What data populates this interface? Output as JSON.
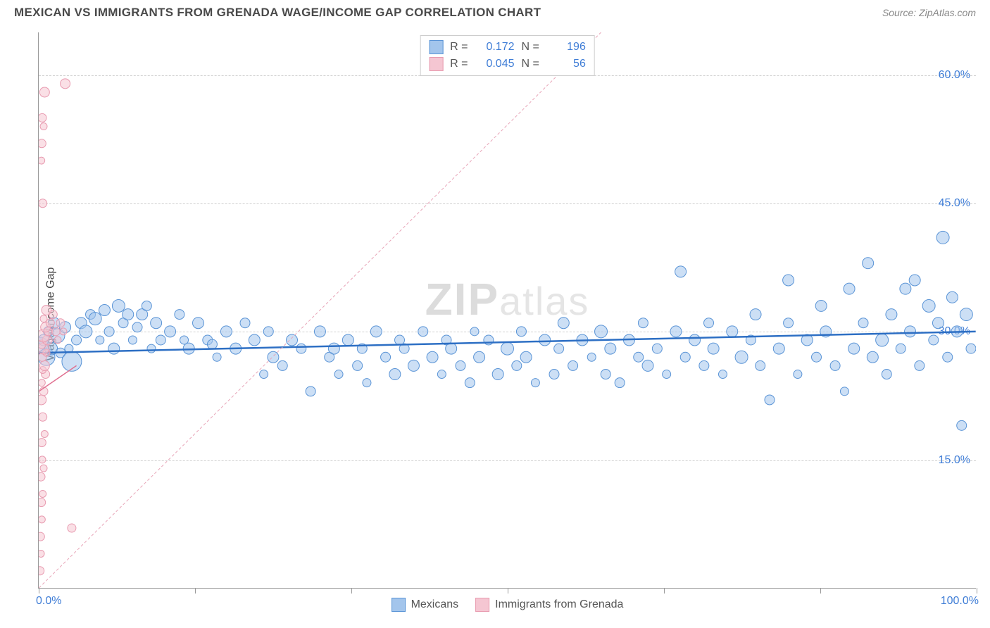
{
  "header": {
    "title": "MEXICAN VS IMMIGRANTS FROM GRENADA WAGE/INCOME GAP CORRELATION CHART",
    "source": "Source: ZipAtlas.com"
  },
  "chart": {
    "type": "scatter",
    "ylabel": "Wage/Income Gap",
    "xlim": [
      0,
      100
    ],
    "ylim": [
      0,
      65
    ],
    "ytick_values": [
      15,
      30,
      45,
      60
    ],
    "ytick_labels": [
      "15.0%",
      "30.0%",
      "45.0%",
      "60.0%"
    ],
    "xtick_values": [
      0,
      16.67,
      33.33,
      50,
      66.67,
      83.33,
      100
    ],
    "xaxis_labels": {
      "left": "0.0%",
      "right": "100.0%"
    },
    "background_color": "#ffffff",
    "grid_color": "#d0d0d0",
    "axis_color": "#999999",
    "tick_label_color": "#3f7dd6",
    "watermark": "ZIPatlas",
    "series": [
      {
        "name": "Mexicans",
        "fill_color": "#a3c5ec",
        "stroke_color": "#5a94d6",
        "fill_opacity": 0.55,
        "marker_radius_range": [
          5,
          14
        ],
        "regression": {
          "x1": 0,
          "y1": 27.5,
          "x2": 100,
          "y2": 30.0,
          "color": "#2d6fc4",
          "width": 2.5,
          "dash": "none"
        },
        "stats": {
          "R": "0.172",
          "N": "196"
        },
        "points": [
          {
            "x": 0.2,
            "y": 28.5,
            "r": 10
          },
          {
            "x": 0.5,
            "y": 29,
            "r": 8
          },
          {
            "x": 0.8,
            "y": 27,
            "r": 12
          },
          {
            "x": 1.0,
            "y": 30,
            "r": 7
          },
          {
            "x": 1.3,
            "y": 28,
            "r": 9
          },
          {
            "x": 1.6,
            "y": 31,
            "r": 8
          },
          {
            "x": 2.0,
            "y": 29.5,
            "r": 10
          },
          {
            "x": 2.3,
            "y": 27.5,
            "r": 7
          },
          {
            "x": 2.8,
            "y": 30.5,
            "r": 8
          },
          {
            "x": 3.2,
            "y": 28,
            "r": 6
          },
          {
            "x": 3.5,
            "y": 26.5,
            "r": 14
          },
          {
            "x": 4.0,
            "y": 29,
            "r": 7
          },
          {
            "x": 4.5,
            "y": 31,
            "r": 8
          },
          {
            "x": 5.0,
            "y": 30,
            "r": 9
          },
          {
            "x": 5.5,
            "y": 32,
            "r": 7
          },
          {
            "x": 6.0,
            "y": 31.5,
            "r": 9
          },
          {
            "x": 6.5,
            "y": 29,
            "r": 6
          },
          {
            "x": 7.0,
            "y": 32.5,
            "r": 8
          },
          {
            "x": 7.5,
            "y": 30,
            "r": 7
          },
          {
            "x": 8.0,
            "y": 28,
            "r": 8
          },
          {
            "x": 8.5,
            "y": 33,
            "r": 9
          },
          {
            "x": 9.0,
            "y": 31,
            "r": 7
          },
          {
            "x": 9.5,
            "y": 32,
            "r": 8
          },
          {
            "x": 10.0,
            "y": 29,
            "r": 6
          },
          {
            "x": 10.5,
            "y": 30.5,
            "r": 7
          },
          {
            "x": 11,
            "y": 32,
            "r": 8
          },
          {
            "x": 11.5,
            "y": 33,
            "r": 7
          },
          {
            "x": 12,
            "y": 28,
            "r": 6
          },
          {
            "x": 12.5,
            "y": 31,
            "r": 8
          },
          {
            "x": 13,
            "y": 29,
            "r": 7
          },
          {
            "x": 14,
            "y": 30,
            "r": 8
          },
          {
            "x": 15,
            "y": 32,
            "r": 7
          },
          {
            "x": 15.5,
            "y": 29,
            "r": 6
          },
          {
            "x": 16,
            "y": 28,
            "r": 8
          },
          {
            "x": 17,
            "y": 31,
            "r": 8
          },
          {
            "x": 18,
            "y": 29,
            "r": 7
          },
          {
            "x": 18.5,
            "y": 28.5,
            "r": 7
          },
          {
            "x": 19,
            "y": 27,
            "r": 6
          },
          {
            "x": 20,
            "y": 30,
            "r": 8
          },
          {
            "x": 21,
            "y": 28,
            "r": 8
          },
          {
            "x": 22,
            "y": 31,
            "r": 7
          },
          {
            "x": 23,
            "y": 29,
            "r": 8
          },
          {
            "x": 24,
            "y": 25,
            "r": 6
          },
          {
            "x": 24.5,
            "y": 30,
            "r": 7
          },
          {
            "x": 25,
            "y": 27,
            "r": 8
          },
          {
            "x": 26,
            "y": 26,
            "r": 7
          },
          {
            "x": 27,
            "y": 29,
            "r": 8
          },
          {
            "x": 28,
            "y": 28,
            "r": 7
          },
          {
            "x": 29,
            "y": 23,
            "r": 7
          },
          {
            "x": 30,
            "y": 30,
            "r": 8
          },
          {
            "x": 31,
            "y": 27,
            "r": 7
          },
          {
            "x": 31.5,
            "y": 28,
            "r": 8
          },
          {
            "x": 32,
            "y": 25,
            "r": 6
          },
          {
            "x": 33,
            "y": 29,
            "r": 8
          },
          {
            "x": 34,
            "y": 26,
            "r": 7
          },
          {
            "x": 34.5,
            "y": 28,
            "r": 7
          },
          {
            "x": 35,
            "y": 24,
            "r": 6
          },
          {
            "x": 36,
            "y": 30,
            "r": 8
          },
          {
            "x": 37,
            "y": 27,
            "r": 7
          },
          {
            "x": 38,
            "y": 25,
            "r": 8
          },
          {
            "x": 38.5,
            "y": 29,
            "r": 7
          },
          {
            "x": 39,
            "y": 28,
            "r": 7
          },
          {
            "x": 40,
            "y": 26,
            "r": 8
          },
          {
            "x": 41,
            "y": 30,
            "r": 7
          },
          {
            "x": 42,
            "y": 27,
            "r": 8
          },
          {
            "x": 43,
            "y": 25,
            "r": 6
          },
          {
            "x": 43.5,
            "y": 29,
            "r": 7
          },
          {
            "x": 44,
            "y": 28,
            "r": 8
          },
          {
            "x": 45,
            "y": 26,
            "r": 7
          },
          {
            "x": 46,
            "y": 24,
            "r": 7
          },
          {
            "x": 46.5,
            "y": 30,
            "r": 6
          },
          {
            "x": 47,
            "y": 27,
            "r": 8
          },
          {
            "x": 48,
            "y": 29,
            "r": 7
          },
          {
            "x": 49,
            "y": 25,
            "r": 8
          },
          {
            "x": 50,
            "y": 28,
            "r": 9
          },
          {
            "x": 51,
            "y": 26,
            "r": 7
          },
          {
            "x": 51.5,
            "y": 30,
            "r": 7
          },
          {
            "x": 52,
            "y": 27,
            "r": 8
          },
          {
            "x": 53,
            "y": 24,
            "r": 6
          },
          {
            "x": 54,
            "y": 29,
            "r": 8
          },
          {
            "x": 55,
            "y": 25,
            "r": 7
          },
          {
            "x": 55.5,
            "y": 28,
            "r": 7
          },
          {
            "x": 56,
            "y": 31,
            "r": 8
          },
          {
            "x": 57,
            "y": 26,
            "r": 7
          },
          {
            "x": 58,
            "y": 29,
            "r": 8
          },
          {
            "x": 59,
            "y": 27,
            "r": 6
          },
          {
            "x": 60,
            "y": 30,
            "r": 9
          },
          {
            "x": 60.5,
            "y": 25,
            "r": 7
          },
          {
            "x": 61,
            "y": 28,
            "r": 8
          },
          {
            "x": 62,
            "y": 24,
            "r": 7
          },
          {
            "x": 63,
            "y": 29,
            "r": 8
          },
          {
            "x": 64,
            "y": 27,
            "r": 7
          },
          {
            "x": 64.5,
            "y": 31,
            "r": 7
          },
          {
            "x": 65,
            "y": 26,
            "r": 8
          },
          {
            "x": 66,
            "y": 28,
            "r": 7
          },
          {
            "x": 67,
            "y": 25,
            "r": 6
          },
          {
            "x": 68,
            "y": 30,
            "r": 8
          },
          {
            "x": 68.5,
            "y": 37,
            "r": 8
          },
          {
            "x": 69,
            "y": 27,
            "r": 7
          },
          {
            "x": 70,
            "y": 29,
            "r": 8
          },
          {
            "x": 71,
            "y": 26,
            "r": 7
          },
          {
            "x": 71.5,
            "y": 31,
            "r": 7
          },
          {
            "x": 72,
            "y": 28,
            "r": 8
          },
          {
            "x": 73,
            "y": 25,
            "r": 6
          },
          {
            "x": 74,
            "y": 30,
            "r": 8
          },
          {
            "x": 75,
            "y": 27,
            "r": 9
          },
          {
            "x": 76,
            "y": 29,
            "r": 7
          },
          {
            "x": 76.5,
            "y": 32,
            "r": 8
          },
          {
            "x": 77,
            "y": 26,
            "r": 7
          },
          {
            "x": 78,
            "y": 22,
            "r": 7
          },
          {
            "x": 79,
            "y": 28,
            "r": 8
          },
          {
            "x": 80,
            "y": 31,
            "r": 7
          },
          {
            "x": 80,
            "y": 36,
            "r": 8
          },
          {
            "x": 81,
            "y": 25,
            "r": 6
          },
          {
            "x": 82,
            "y": 29,
            "r": 8
          },
          {
            "x": 83,
            "y": 27,
            "r": 7
          },
          {
            "x": 83.5,
            "y": 33,
            "r": 8
          },
          {
            "x": 84,
            "y": 30,
            "r": 8
          },
          {
            "x": 85,
            "y": 26,
            "r": 7
          },
          {
            "x": 86,
            "y": 23,
            "r": 6
          },
          {
            "x": 86.5,
            "y": 35,
            "r": 8
          },
          {
            "x": 87,
            "y": 28,
            "r": 8
          },
          {
            "x": 88,
            "y": 31,
            "r": 7
          },
          {
            "x": 88.5,
            "y": 38,
            "r": 8
          },
          {
            "x": 89,
            "y": 27,
            "r": 8
          },
          {
            "x": 90,
            "y": 29,
            "r": 9
          },
          {
            "x": 90.5,
            "y": 25,
            "r": 7
          },
          {
            "x": 91,
            "y": 32,
            "r": 8
          },
          {
            "x": 92,
            "y": 28,
            "r": 7
          },
          {
            "x": 92.5,
            "y": 35,
            "r": 8
          },
          {
            "x": 93,
            "y": 30,
            "r": 8
          },
          {
            "x": 93.5,
            "y": 36,
            "r": 8
          },
          {
            "x": 94,
            "y": 26,
            "r": 7
          },
          {
            "x": 95,
            "y": 33,
            "r": 9
          },
          {
            "x": 95.5,
            "y": 29,
            "r": 7
          },
          {
            "x": 96,
            "y": 31,
            "r": 8
          },
          {
            "x": 96.5,
            "y": 41,
            "r": 9
          },
          {
            "x": 97,
            "y": 27,
            "r": 7
          },
          {
            "x": 97.5,
            "y": 34,
            "r": 8
          },
          {
            "x": 98,
            "y": 30,
            "r": 8
          },
          {
            "x": 98.5,
            "y": 19,
            "r": 7
          },
          {
            "x": 99,
            "y": 32,
            "r": 9
          },
          {
            "x": 99.5,
            "y": 28,
            "r": 7
          }
        ]
      },
      {
        "name": "Immigrants from Grenada",
        "fill_color": "#f5c6d2",
        "stroke_color": "#e89bb0",
        "fill_opacity": 0.55,
        "marker_radius_range": [
          4,
          9
        ],
        "regression": {
          "x1": 0,
          "y1": 23,
          "x2": 4,
          "y2": 26,
          "color": "#e07090",
          "width": 1.5,
          "dash": "none"
        },
        "diagonal": {
          "x1": 0,
          "y1": 0,
          "x2": 60,
          "y2": 65,
          "color": "#e8a5b8",
          "dash": "4,3",
          "width": 1
        },
        "stats": {
          "R": "0.045",
          "N": "56"
        },
        "points": [
          {
            "x": 0.1,
            "y": 2,
            "r": 6
          },
          {
            "x": 0.2,
            "y": 4,
            "r": 5
          },
          {
            "x": 0.15,
            "y": 6,
            "r": 6
          },
          {
            "x": 0.3,
            "y": 8,
            "r": 5
          },
          {
            "x": 0.25,
            "y": 10,
            "r": 6
          },
          {
            "x": 0.4,
            "y": 11,
            "r": 5
          },
          {
            "x": 0.2,
            "y": 13,
            "r": 6
          },
          {
            "x": 0.5,
            "y": 14,
            "r": 5
          },
          {
            "x": 0.35,
            "y": 15,
            "r": 5
          },
          {
            "x": 0.3,
            "y": 17,
            "r": 6
          },
          {
            "x": 0.6,
            "y": 18,
            "r": 5
          },
          {
            "x": 0.4,
            "y": 20,
            "r": 6
          },
          {
            "x": 0.25,
            "y": 22,
            "r": 7
          },
          {
            "x": 0.5,
            "y": 23,
            "r": 6
          },
          {
            "x": 0.3,
            "y": 24,
            "r": 5
          },
          {
            "x": 0.7,
            "y": 25,
            "r": 6
          },
          {
            "x": 0.4,
            "y": 25.5,
            "r": 5
          },
          {
            "x": 0.6,
            "y": 26,
            "r": 7
          },
          {
            "x": 0.35,
            "y": 27,
            "r": 6
          },
          {
            "x": 0.8,
            "y": 27.5,
            "r": 5
          },
          {
            "x": 0.5,
            "y": 28,
            "r": 8
          },
          {
            "x": 0.3,
            "y": 28.5,
            "r": 6
          },
          {
            "x": 0.9,
            "y": 29,
            "r": 7
          },
          {
            "x": 0.45,
            "y": 29.5,
            "r": 9
          },
          {
            "x": 1.0,
            "y": 30,
            "r": 6
          },
          {
            "x": 0.7,
            "y": 30.5,
            "r": 7
          },
          {
            "x": 1.2,
            "y": 31,
            "r": 6
          },
          {
            "x": 0.5,
            "y": 31.5,
            "r": 5
          },
          {
            "x": 1.5,
            "y": 32,
            "r": 6
          },
          {
            "x": 0.8,
            "y": 32.5,
            "r": 7
          },
          {
            "x": 1.8,
            "y": 30,
            "r": 6
          },
          {
            "x": 2.0,
            "y": 29,
            "r": 5
          },
          {
            "x": 2.3,
            "y": 31,
            "r": 6
          },
          {
            "x": 2.6,
            "y": 30,
            "r": 5
          },
          {
            "x": 0.4,
            "y": 45,
            "r": 6
          },
          {
            "x": 0.25,
            "y": 50,
            "r": 5
          },
          {
            "x": 0.3,
            "y": 52,
            "r": 6
          },
          {
            "x": 0.5,
            "y": 54,
            "r": 5
          },
          {
            "x": 0.35,
            "y": 55,
            "r": 6
          },
          {
            "x": 0.6,
            "y": 58,
            "r": 7
          },
          {
            "x": 2.8,
            "y": 59,
            "r": 7
          },
          {
            "x": 3.5,
            "y": 7,
            "r": 6
          }
        ]
      }
    ],
    "legend_top": {
      "rows": [
        {
          "swatch": "blue",
          "r_label": "R =",
          "r": "0.172",
          "n_label": "N =",
          "n": "196"
        },
        {
          "swatch": "pink",
          "r_label": "R =",
          "r": "0.045",
          "n_label": "N =",
          "n": "56"
        }
      ]
    },
    "legend_bottom": [
      {
        "swatch": "blue",
        "label": "Mexicans"
      },
      {
        "swatch": "pink",
        "label": "Immigrants from Grenada"
      }
    ]
  }
}
